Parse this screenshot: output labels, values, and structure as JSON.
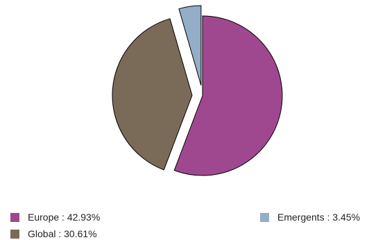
{
  "chart_data": {
    "type": "pie",
    "title": "",
    "slices": [
      {
        "label": "Europe",
        "value": 42.93,
        "display": "Europe : 42.93%",
        "color": "#a0488f",
        "exploded": false
      },
      {
        "label": "Global",
        "value": 30.61,
        "display": "Global : 30.61%",
        "color": "#7a6b58",
        "exploded": true
      },
      {
        "label": "Emergents",
        "value": 3.45,
        "display": "Emergents : 3.45%",
        "color": "#93aec6",
        "exploded": true
      }
    ],
    "start_angle_deg": 0,
    "direction": "clockwise",
    "legend_position": "bottom"
  }
}
